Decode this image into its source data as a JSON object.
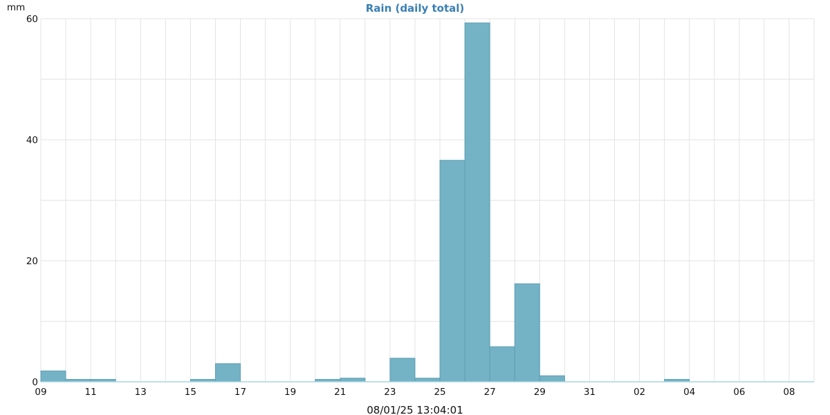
{
  "chart_data": {
    "type": "bar",
    "title": "Rain (daily total)",
    "ylabel": "mm",
    "xlabel": "08/01/25 13:04:01",
    "ylim": [
      0,
      60
    ],
    "yticks": [
      0,
      20,
      40,
      60
    ],
    "xtick_labels": [
      "09",
      "11",
      "13",
      "15",
      "17",
      "19",
      "21",
      "23",
      "25",
      "27",
      "29",
      "31",
      "02",
      "04",
      "06",
      "08"
    ],
    "categories": [
      "09",
      "10",
      "11",
      "12",
      "13",
      "14",
      "15",
      "16",
      "17",
      "18",
      "19",
      "20",
      "21",
      "22",
      "23",
      "24",
      "25",
      "26",
      "27",
      "28",
      "29",
      "30",
      "31",
      "01",
      "02",
      "03",
      "04",
      "05",
      "06",
      "07",
      "08"
    ],
    "values": [
      1.8,
      0.4,
      0.4,
      0,
      0,
      0,
      0.4,
      3.0,
      0,
      0,
      0,
      0.4,
      0.6,
      0,
      3.9,
      0.6,
      36.6,
      59.3,
      5.8,
      16.2,
      1.0,
      0,
      0,
      0,
      0,
      0.4,
      0,
      0,
      0,
      0,
      0
    ],
    "grid": true,
    "colors": {
      "bar_fill": "#74b2c5",
      "bar_stroke": "#5e9fb4",
      "title": "#3a7fb5",
      "grid": "#e3e3e3",
      "baseline": "#a8d6e2"
    }
  }
}
